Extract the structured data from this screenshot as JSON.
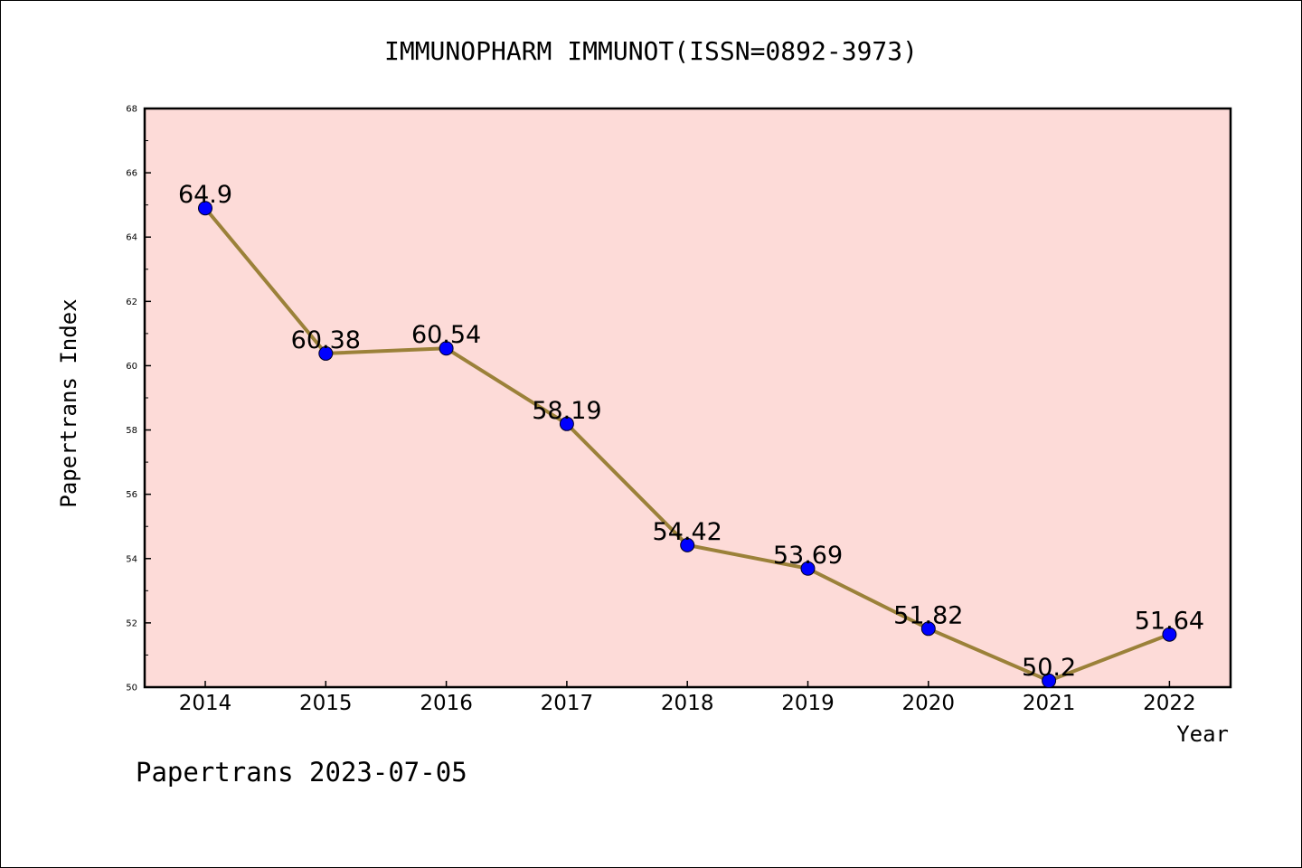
{
  "footer_text": "Papertrans 2023-07-05",
  "chart_data": {
    "type": "line",
    "title": "IMMUNOPHARM IMMUNOT(ISSN=0892-3973)",
    "xlabel": "Year",
    "ylabel": "Papertrans Index",
    "categories": [
      "2014",
      "2015",
      "2016",
      "2017",
      "2018",
      "2019",
      "2020",
      "2021",
      "2022"
    ],
    "values": [
      64.9,
      60.38,
      60.54,
      58.19,
      54.42,
      53.69,
      51.82,
      50.2,
      51.64
    ],
    "data_labels": [
      "64.9",
      "60.38",
      "60.54",
      "58.19",
      "54.42",
      "53.69",
      "51.82",
      "50.2",
      "51.64"
    ],
    "ylim": [
      50,
      68
    ],
    "yticks": [
      "50",
      "52",
      "54",
      "56",
      "58",
      "60",
      "62",
      "64",
      "66",
      "68"
    ],
    "grid": false,
    "legend": "none",
    "colors": {
      "plot_background": "#fddbd8",
      "line": "#9b8139",
      "marker": "#0000ff"
    }
  }
}
